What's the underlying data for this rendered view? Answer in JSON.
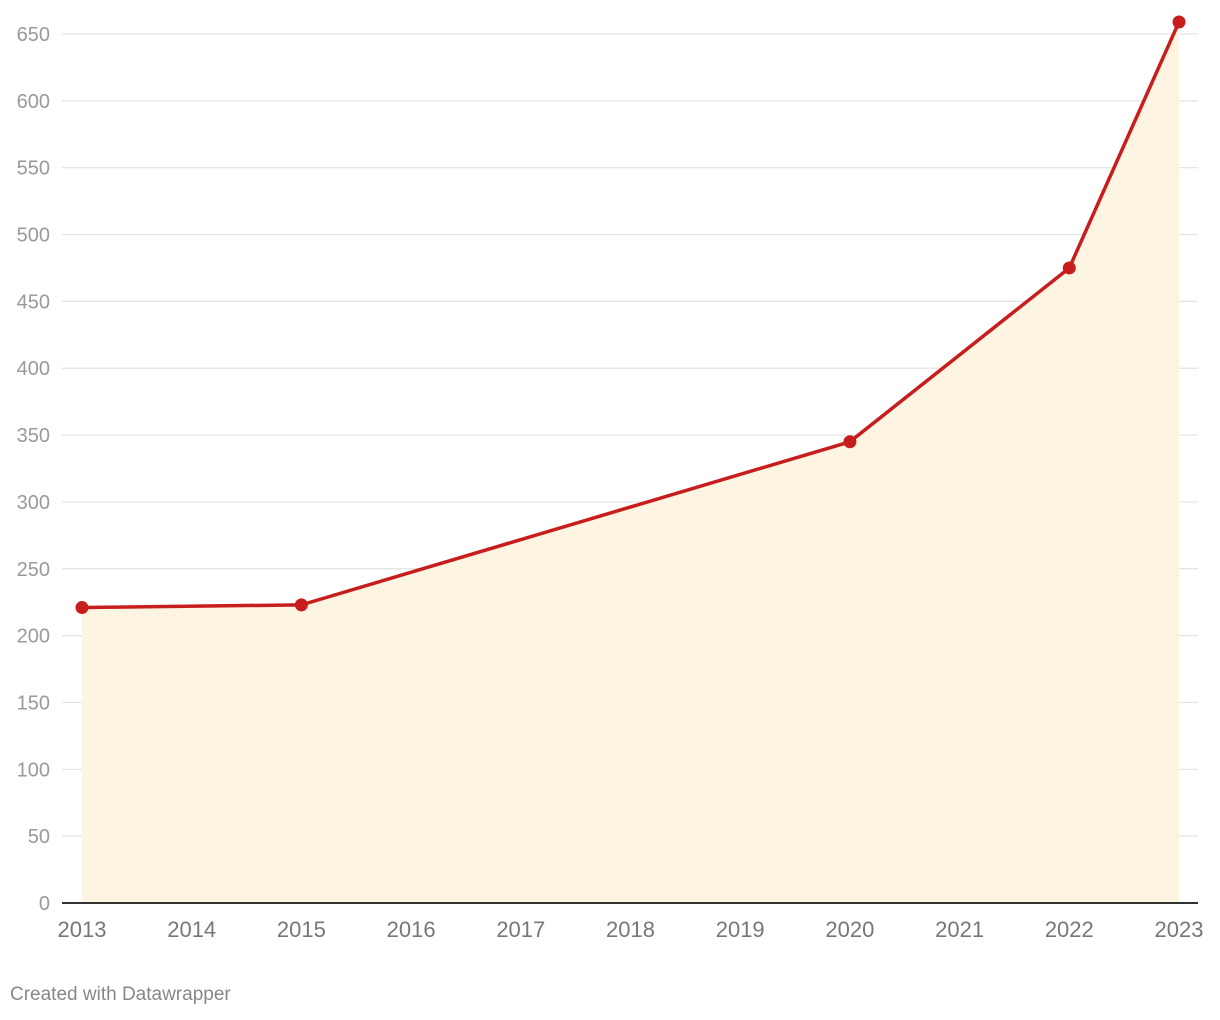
{
  "chart_data": {
    "type": "area",
    "title": "",
    "xlabel": "",
    "ylabel": "",
    "x_ticks": [
      "2013",
      "2014",
      "2015",
      "2016",
      "2017",
      "2018",
      "2019",
      "2020",
      "2021",
      "2022",
      "2023"
    ],
    "y_ticks": [
      0,
      50,
      100,
      150,
      200,
      250,
      300,
      350,
      400,
      450,
      500,
      550,
      600,
      650
    ],
    "xlim": [
      2013,
      2023
    ],
    "ylim": [
      0,
      650
    ],
    "grid": true,
    "legend": "none",
    "series": [
      {
        "x": [
          2013,
          2015,
          2020,
          2022,
          2023
        ],
        "values": [
          221,
          223,
          345,
          475,
          659
        ],
        "line_color": "#c71e1d",
        "fill_color": "#fdf4e2",
        "markers": true
      }
    ]
  },
  "footer": {
    "credit": "Created with Datawrapper"
  }
}
